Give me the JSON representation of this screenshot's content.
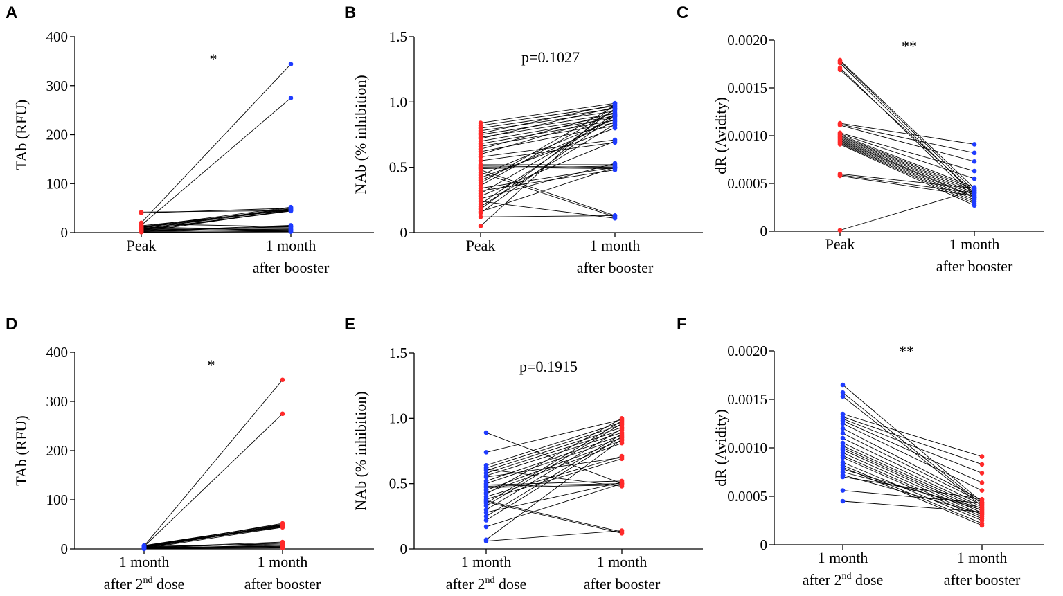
{
  "colors": {
    "red": "#ff2a2a",
    "blue": "#1f3cff",
    "line": "#000000"
  },
  "chart_data": [
    {
      "panel": "A",
      "type": "scatter",
      "subtype": "paired-line",
      "ylabel": "TAb (RFU)",
      "ylim": [
        0,
        400
      ],
      "yticks": [
        0,
        100,
        200,
        300,
        400
      ],
      "categories": [
        [
          "Peak"
        ],
        [
          "1 month",
          "after booster"
        ]
      ],
      "point_colors": [
        "red",
        "blue"
      ],
      "annotation": "*",
      "pairs": [
        [
          42,
          45
        ],
        [
          40,
          50
        ],
        [
          20,
          344
        ],
        [
          15,
          275
        ],
        [
          12,
          52
        ],
        [
          10,
          48
        ],
        [
          8,
          47
        ],
        [
          14,
          46
        ],
        [
          6,
          45
        ],
        [
          5,
          44
        ],
        [
          18,
          12
        ],
        [
          10,
          8
        ],
        [
          4,
          12
        ],
        [
          3,
          5
        ],
        [
          2,
          6
        ],
        [
          12,
          3
        ],
        [
          8,
          6
        ],
        [
          1,
          2
        ],
        [
          6,
          10
        ],
        [
          3,
          15
        ],
        [
          5,
          2
        ],
        [
          2,
          13
        ],
        [
          11,
          49
        ],
        [
          7,
          51
        ],
        [
          2,
          46
        ]
      ]
    },
    {
      "panel": "B",
      "type": "scatter",
      "subtype": "paired-line",
      "ylabel": "NAb (% inhibition)",
      "ylim": [
        0,
        1.5
      ],
      "yticks": [
        "0",
        "0.5",
        "1.0",
        "1.5"
      ],
      "categories": [
        [
          "Peak"
        ],
        [
          "1 month",
          "after booster"
        ]
      ],
      "point_colors": [
        "red",
        "blue"
      ],
      "annotation": "p=0.1027",
      "pairs": [
        [
          0.84,
          0.99
        ],
        [
          0.82,
          0.97
        ],
        [
          0.8,
          0.95
        ],
        [
          0.78,
          0.93
        ],
        [
          0.76,
          0.98
        ],
        [
          0.75,
          0.91
        ],
        [
          0.73,
          0.89
        ],
        [
          0.72,
          0.96
        ],
        [
          0.7,
          0.88
        ],
        [
          0.68,
          0.86
        ],
        [
          0.66,
          0.84
        ],
        [
          0.64,
          0.92
        ],
        [
          0.62,
          0.82
        ],
        [
          0.6,
          0.9
        ],
        [
          0.58,
          0.71
        ],
        [
          0.55,
          0.69
        ],
        [
          0.52,
          0.52
        ],
        [
          0.51,
          0.5
        ],
        [
          0.5,
          0.49
        ],
        [
          0.49,
          0.51
        ],
        [
          0.48,
          0.13
        ],
        [
          0.46,
          0.12
        ],
        [
          0.44,
          0.87
        ],
        [
          0.42,
          0.8
        ],
        [
          0.4,
          0.85
        ],
        [
          0.38,
          0.97
        ],
        [
          0.36,
          0.94
        ],
        [
          0.34,
          0.5
        ],
        [
          0.32,
          0.48
        ],
        [
          0.3,
          0.89
        ],
        [
          0.28,
          0.7
        ],
        [
          0.26,
          0.53
        ],
        [
          0.24,
          0.11
        ],
        [
          0.22,
          0.91
        ],
        [
          0.2,
          0.83
        ],
        [
          0.18,
          0.95
        ],
        [
          0.16,
          0.5
        ],
        [
          0.15,
          0.9
        ],
        [
          0.12,
          0.13
        ],
        [
          0.05,
          0.99
        ]
      ]
    },
    {
      "panel": "C",
      "type": "scatter",
      "subtype": "paired-line",
      "ylabel": "dR (Avidity)",
      "ylim": [
        0,
        0.002
      ],
      "yticks": [
        "0",
        "0.0005",
        "0.0010",
        "0.0015",
        "0.0020"
      ],
      "categories": [
        [
          "Peak"
        ],
        [
          "1 month",
          "after booster"
        ]
      ],
      "point_colors": [
        "red",
        "blue"
      ],
      "annotation": "**",
      "pairs": [
        [
          0.00179,
          0.00045
        ],
        [
          0.00178,
          0.00042
        ],
        [
          0.00176,
          0.00038
        ],
        [
          0.00171,
          0.00035
        ],
        [
          0.00169,
          0.0004
        ],
        [
          0.00113,
          0.00091
        ],
        [
          0.00112,
          0.00082
        ],
        [
          0.00111,
          0.00073
        ],
        [
          0.00103,
          0.00063
        ],
        [
          0.00102,
          0.00055
        ],
        [
          0.00101,
          0.00046
        ],
        [
          0.001,
          0.00044
        ],
        [
          0.00099,
          0.00042
        ],
        [
          0.00098,
          0.0004
        ],
        [
          0.00097,
          0.00038
        ],
        [
          0.00096,
          0.00036
        ],
        [
          0.00095,
          0.00035
        ],
        [
          0.00094,
          0.00033
        ],
        [
          0.00093,
          0.00031
        ],
        [
          0.00092,
          0.00029
        ],
        [
          0.00091,
          0.00027
        ],
        [
          0.0006,
          0.00045
        ],
        [
          0.00059,
          0.0004
        ],
        [
          0.00058,
          0.00037
        ],
        [
          1e-05,
          0.00043
        ]
      ]
    },
    {
      "panel": "D",
      "type": "scatter",
      "subtype": "paired-line",
      "ylabel": "TAb (RFU)",
      "ylim": [
        0,
        400
      ],
      "yticks": [
        0,
        100,
        200,
        300,
        400
      ],
      "categories": [
        [
          "1 month",
          "after 2nd dose"
        ],
        [
          "1 month",
          "after booster"
        ]
      ],
      "point_colors": [
        "blue",
        "red"
      ],
      "annotation": "*",
      "pairs": [
        [
          6,
          344
        ],
        [
          5,
          275
        ],
        [
          4,
          52
        ],
        [
          7,
          50
        ],
        [
          3,
          49
        ],
        [
          5,
          48
        ],
        [
          2,
          47
        ],
        [
          6,
          46
        ],
        [
          4,
          45
        ],
        [
          1,
          44
        ],
        [
          3,
          14
        ],
        [
          2,
          12
        ],
        [
          5,
          10
        ],
        [
          1,
          8
        ],
        [
          2,
          6
        ],
        [
          3,
          5
        ],
        [
          0,
          4
        ],
        [
          4,
          3
        ],
        [
          1,
          2
        ],
        [
          2,
          12
        ],
        [
          6,
          50
        ],
        [
          3,
          47
        ]
      ]
    },
    {
      "panel": "E",
      "type": "scatter",
      "subtype": "paired-line",
      "ylabel": "NAb (% inhibition)",
      "ylim": [
        0,
        1.5
      ],
      "yticks": [
        "0",
        "0.5",
        "1.0",
        "1.5"
      ],
      "categories": [
        [
          "1 month",
          "after 2nd dose"
        ],
        [
          "1 month",
          "after booster"
        ]
      ],
      "point_colors": [
        "blue",
        "red"
      ],
      "annotation": "p=0.1915",
      "pairs": [
        [
          0.89,
          0.5
        ],
        [
          0.74,
          0.99
        ],
        [
          0.64,
          0.97
        ],
        [
          0.62,
          0.95
        ],
        [
          0.6,
          0.93
        ],
        [
          0.58,
          0.91
        ],
        [
          0.56,
          0.89
        ],
        [
          0.52,
          0.87
        ],
        [
          0.5,
          0.85
        ],
        [
          0.49,
          0.52
        ],
        [
          0.48,
          0.5
        ],
        [
          0.47,
          0.49
        ],
        [
          0.45,
          0.83
        ],
        [
          0.43,
          0.81
        ],
        [
          0.4,
          0.71
        ],
        [
          0.38,
          0.69
        ],
        [
          0.37,
          0.13
        ],
        [
          0.36,
          0.12
        ],
        [
          0.35,
          0.98
        ],
        [
          0.33,
          0.96
        ],
        [
          0.3,
          0.92
        ],
        [
          0.28,
          0.51
        ],
        [
          0.25,
          0.88
        ],
        [
          0.22,
          0.86
        ],
        [
          0.17,
          0.5
        ],
        [
          0.07,
          0.84
        ],
        [
          0.06,
          0.14
        ],
        [
          0.42,
          1.0
        ],
        [
          0.55,
          0.7
        ],
        [
          0.61,
          0.48
        ]
      ]
    },
    {
      "panel": "F",
      "type": "scatter",
      "subtype": "paired-line",
      "ylabel": "dR (Avidity)",
      "ylim": [
        0,
        0.002
      ],
      "yticks": [
        "0",
        "0.0005",
        "0.0010",
        "0.0015",
        "0.0020"
      ],
      "categories": [
        [
          "1 month",
          "after 2nd dose"
        ],
        [
          "1 month",
          "after booster"
        ]
      ],
      "point_colors": [
        "blue",
        "red"
      ],
      "annotation": "**",
      "pairs": [
        [
          0.00165,
          0.00044
        ],
        [
          0.00157,
          0.00042
        ],
        [
          0.00153,
          0.0004
        ],
        [
          0.00135,
          0.00091
        ],
        [
          0.00132,
          0.00083
        ],
        [
          0.0013,
          0.00074
        ],
        [
          0.00128,
          0.00064
        ],
        [
          0.00125,
          0.00056
        ],
        [
          0.0012,
          0.00046
        ],
        [
          0.00115,
          0.00044
        ],
        [
          0.0011,
          0.00041
        ],
        [
          0.00105,
          0.00039
        ],
        [
          0.00102,
          0.00037
        ],
        [
          0.001,
          0.00035
        ],
        [
          0.00098,
          0.00033
        ],
        [
          0.00095,
          0.00031
        ],
        [
          0.00092,
          0.00029
        ],
        [
          0.0009,
          0.00027
        ],
        [
          0.00085,
          0.00025
        ],
        [
          0.00082,
          0.00022
        ],
        [
          0.0008,
          0.0002
        ],
        [
          0.00078,
          0.00036
        ],
        [
          0.00075,
          0.00038
        ],
        [
          0.00072,
          0.00032
        ],
        [
          0.0007,
          0.00047
        ],
        [
          0.00056,
          0.00043
        ],
        [
          0.00045,
          0.00034
        ]
      ]
    }
  ]
}
